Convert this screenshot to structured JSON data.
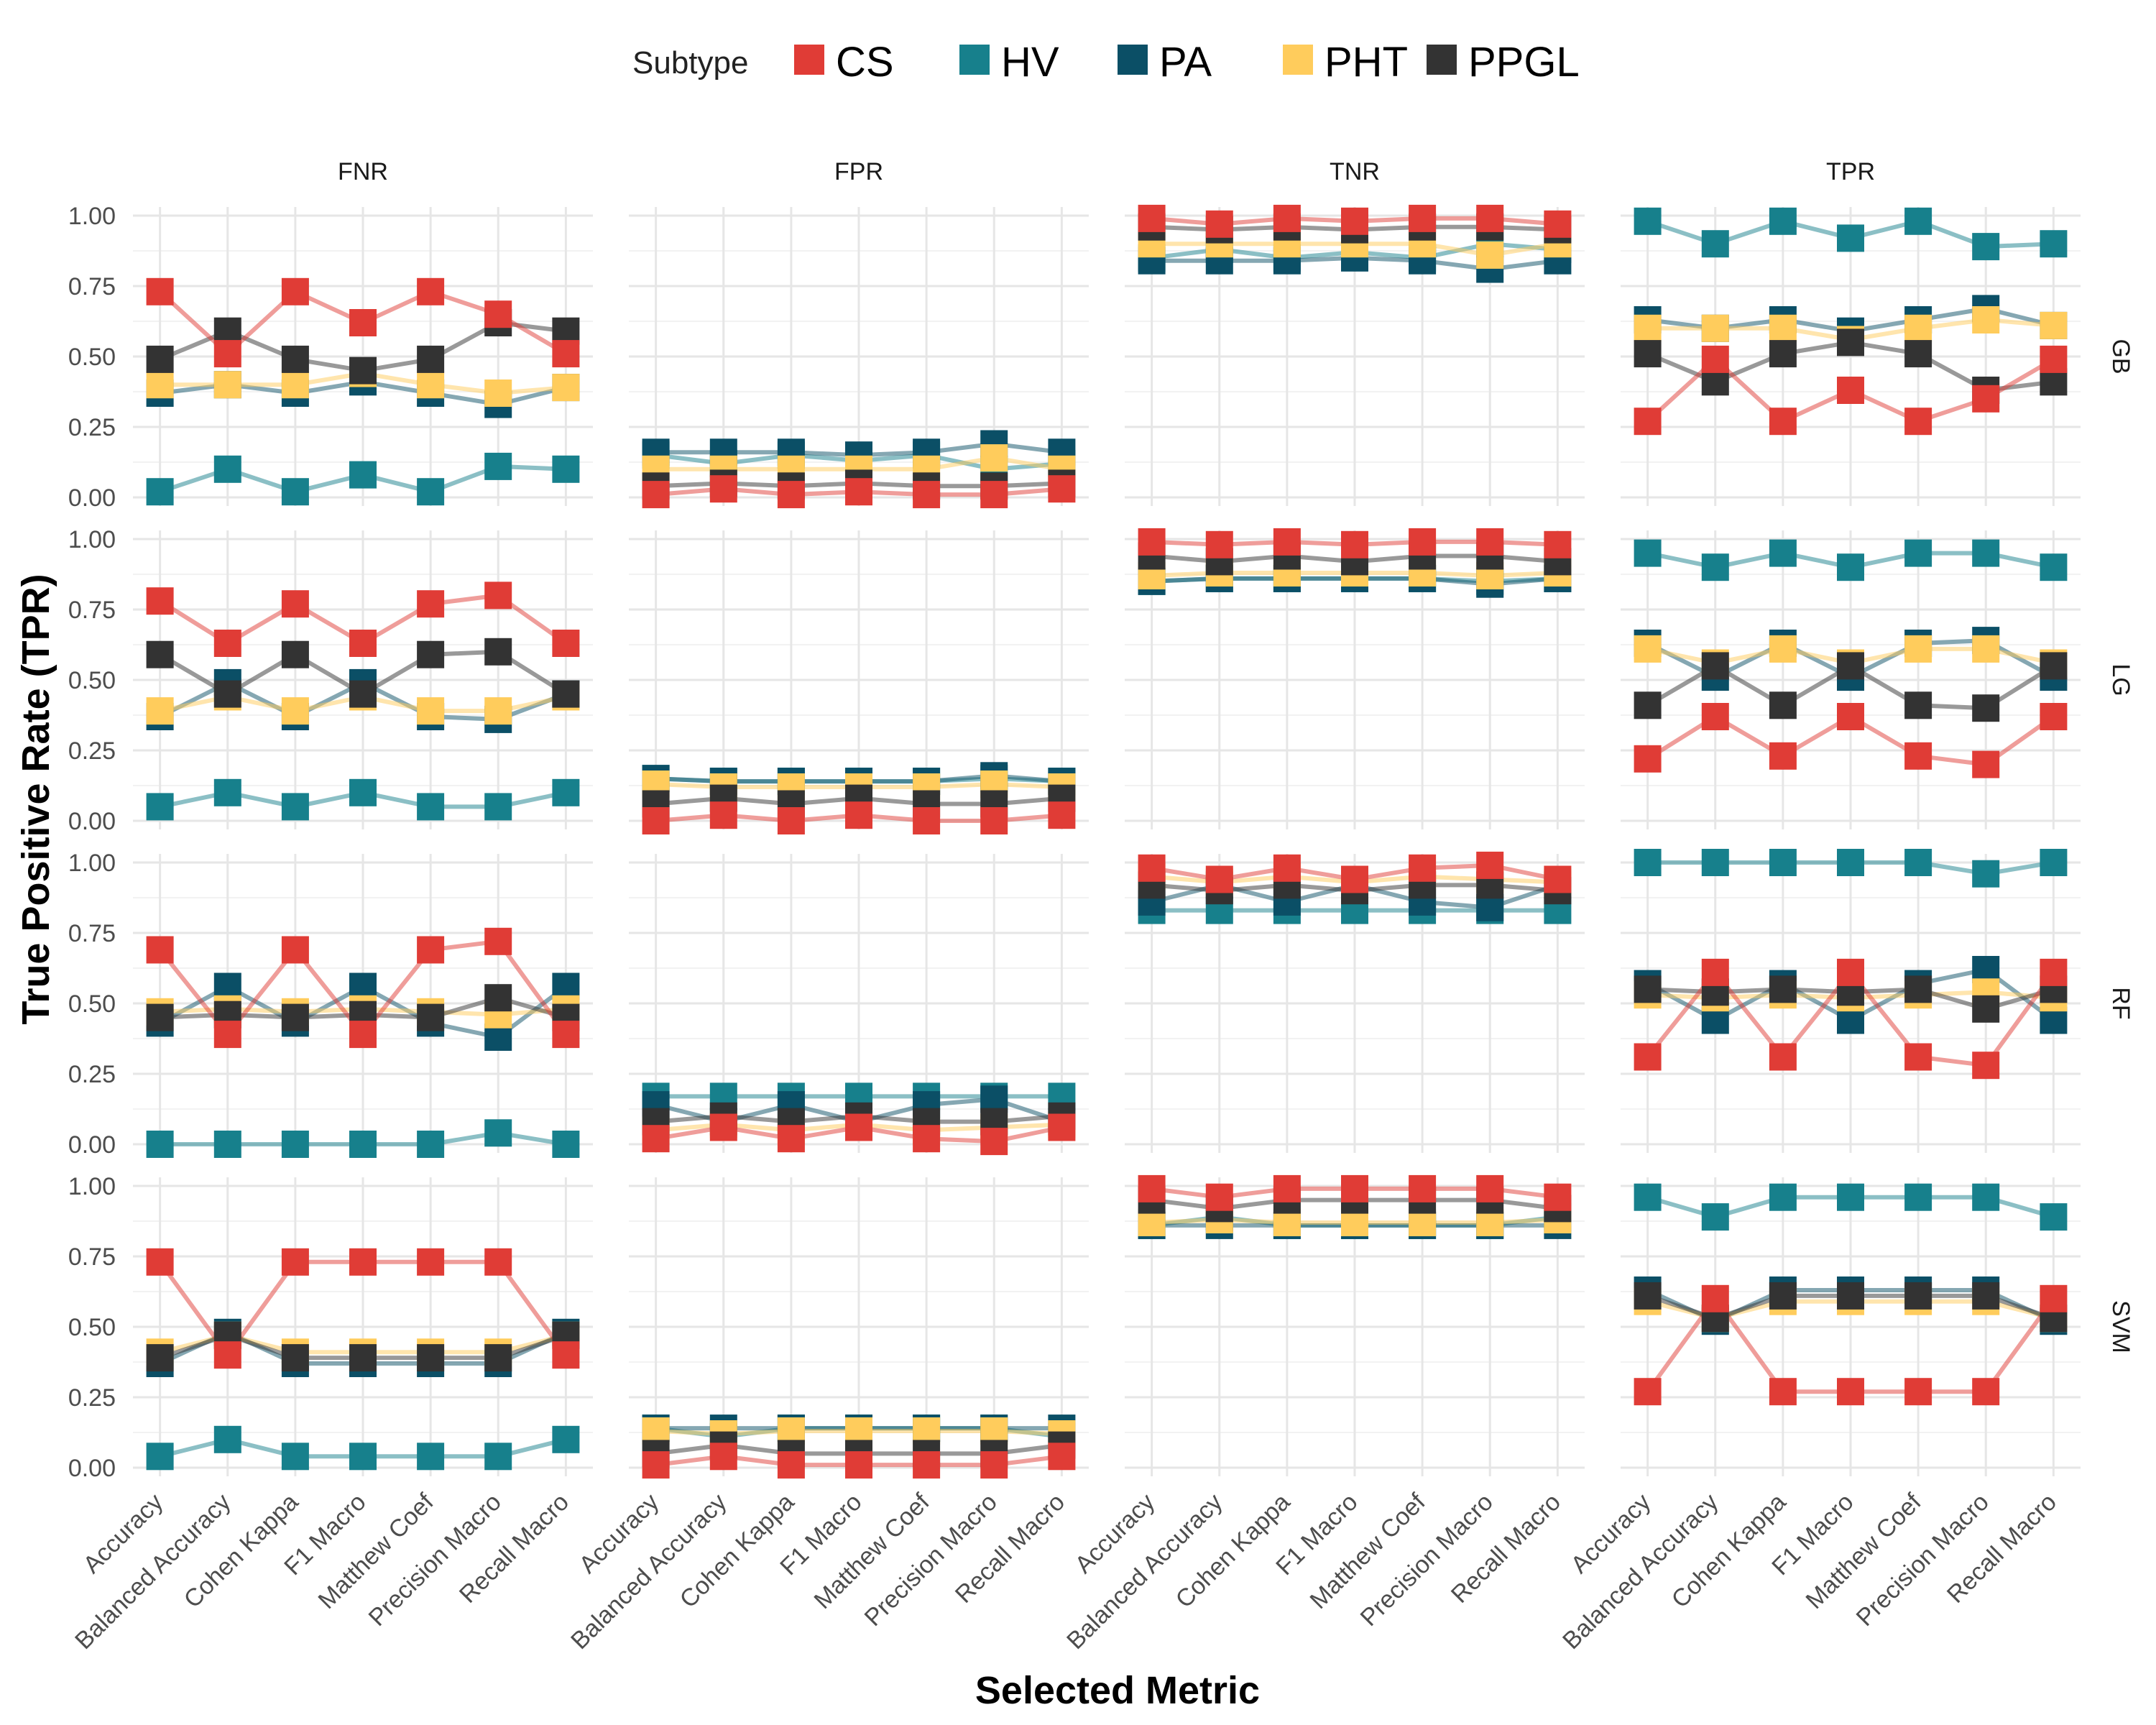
{
  "chart_data": {
    "type": "line",
    "xlabel": "Selected Metric",
    "ylabel": "True Positive Rate (TPR)",
    "ylim": [
      0,
      1
    ],
    "yticks": [
      "0.00",
      "0.25",
      "0.50",
      "0.75",
      "1.00"
    ],
    "grid": true,
    "legend": {
      "title": "Subtype",
      "position": "top",
      "entries": [
        {
          "name": "CS",
          "color": "#E03C36"
        },
        {
          "name": "HV",
          "color": "#17808C"
        },
        {
          "name": "PA",
          "color": "#0B4F66"
        },
        {
          "name": "PHT",
          "color": "#FFCC5C"
        },
        {
          "name": "PPGL",
          "color": "#333333"
        }
      ]
    },
    "categories": [
      "Accuracy",
      "Balanced Accuracy",
      "Cohen Kappa",
      "F1 Macro",
      "Matthew Coef",
      "Precision Macro",
      "Recall Macro"
    ],
    "columns": [
      "FNR",
      "FPR",
      "TNR",
      "TPR"
    ],
    "rows": [
      "GB",
      "LG",
      "RF",
      "SVM"
    ],
    "panels": {
      "GB": {
        "FNR": {
          "CS": [
            0.73,
            0.51,
            0.73,
            0.62,
            0.73,
            0.65,
            0.51
          ],
          "HV": [
            0.02,
            0.1,
            0.02,
            0.08,
            0.02,
            0.11,
            0.1
          ],
          "PA": [
            0.37,
            0.4,
            0.37,
            0.41,
            0.37,
            0.33,
            0.39
          ],
          "PHT": [
            0.4,
            0.4,
            0.4,
            0.44,
            0.4,
            0.37,
            0.39
          ],
          "PPGL": [
            0.49,
            0.59,
            0.49,
            0.45,
            0.49,
            0.62,
            0.59
          ]
        },
        "FPR": {
          "CS": [
            0.01,
            0.03,
            0.01,
            0.02,
            0.01,
            0.01,
            0.03
          ],
          "HV": [
            0.15,
            0.12,
            0.15,
            0.13,
            0.15,
            0.1,
            0.12
          ],
          "PA": [
            0.16,
            0.16,
            0.16,
            0.15,
            0.16,
            0.19,
            0.16
          ],
          "PHT": [
            0.1,
            0.1,
            0.1,
            0.1,
            0.1,
            0.14,
            0.1
          ],
          "PPGL": [
            0.04,
            0.05,
            0.04,
            0.05,
            0.04,
            0.04,
            0.05
          ]
        },
        "TNR": {
          "CS": [
            0.99,
            0.97,
            0.99,
            0.98,
            0.99,
            0.99,
            0.97
          ],
          "HV": [
            0.85,
            0.88,
            0.85,
            0.87,
            0.85,
            0.9,
            0.88
          ],
          "PA": [
            0.84,
            0.84,
            0.84,
            0.85,
            0.84,
            0.81,
            0.84
          ],
          "PHT": [
            0.9,
            0.9,
            0.9,
            0.9,
            0.9,
            0.86,
            0.9
          ],
          "PPGL": [
            0.96,
            0.95,
            0.96,
            0.95,
            0.96,
            0.96,
            0.95
          ]
        },
        "TPR": {
          "CS": [
            0.27,
            0.49,
            0.27,
            0.38,
            0.27,
            0.35,
            0.49
          ],
          "HV": [
            0.98,
            0.9,
            0.98,
            0.92,
            0.98,
            0.89,
            0.9
          ],
          "PA": [
            0.63,
            0.6,
            0.63,
            0.59,
            0.63,
            0.67,
            0.61
          ],
          "PHT": [
            0.6,
            0.6,
            0.6,
            0.56,
            0.6,
            0.63,
            0.61
          ],
          "PPGL": [
            0.51,
            0.41,
            0.51,
            0.55,
            0.51,
            0.38,
            0.41
          ]
        }
      },
      "LG": {
        "FNR": {
          "CS": [
            0.78,
            0.63,
            0.77,
            0.63,
            0.77,
            0.8,
            0.63
          ],
          "HV": [
            0.05,
            0.1,
            0.05,
            0.1,
            0.05,
            0.05,
            0.1
          ],
          "PA": [
            0.37,
            0.49,
            0.37,
            0.49,
            0.37,
            0.36,
            0.45
          ],
          "PHT": [
            0.39,
            0.44,
            0.39,
            0.44,
            0.39,
            0.39,
            0.44
          ],
          "PPGL": [
            0.59,
            0.45,
            0.59,
            0.45,
            0.59,
            0.6,
            0.45
          ]
        },
        "FPR": {
          "CS": [
            0.0,
            0.02,
            0.0,
            0.02,
            0.0,
            0.0,
            0.02
          ],
          "HV": [
            0.15,
            0.14,
            0.14,
            0.14,
            0.14,
            0.15,
            0.14
          ],
          "PA": [
            0.15,
            0.14,
            0.14,
            0.14,
            0.14,
            0.16,
            0.14
          ],
          "PHT": [
            0.13,
            0.12,
            0.12,
            0.12,
            0.12,
            0.13,
            0.12
          ],
          "PPGL": [
            0.06,
            0.08,
            0.06,
            0.08,
            0.06,
            0.06,
            0.08
          ]
        },
        "TNR": {
          "CS": [
            0.99,
            0.98,
            0.99,
            0.98,
            0.99,
            0.99,
            0.98
          ],
          "HV": [
            0.85,
            0.86,
            0.86,
            0.86,
            0.86,
            0.85,
            0.86
          ],
          "PA": [
            0.85,
            0.86,
            0.86,
            0.86,
            0.86,
            0.84,
            0.86
          ],
          "PHT": [
            0.87,
            0.88,
            0.88,
            0.88,
            0.88,
            0.87,
            0.88
          ],
          "PPGL": [
            0.94,
            0.92,
            0.94,
            0.92,
            0.94,
            0.94,
            0.92
          ]
        },
        "TPR": {
          "CS": [
            0.22,
            0.37,
            0.23,
            0.37,
            0.23,
            0.2,
            0.37
          ],
          "HV": [
            0.95,
            0.9,
            0.95,
            0.9,
            0.95,
            0.95,
            0.9
          ],
          "PA": [
            0.63,
            0.51,
            0.63,
            0.51,
            0.63,
            0.64,
            0.51
          ],
          "PHT": [
            0.61,
            0.56,
            0.61,
            0.56,
            0.61,
            0.61,
            0.56
          ],
          "PPGL": [
            0.41,
            0.55,
            0.41,
            0.55,
            0.41,
            0.4,
            0.55
          ]
        }
      },
      "RF": {
        "FNR": {
          "CS": [
            0.69,
            0.39,
            0.69,
            0.39,
            0.69,
            0.72,
            0.39
          ],
          "HV": [
            0.0,
            0.0,
            0.0,
            0.0,
            0.0,
            0.04,
            0.0
          ],
          "PA": [
            0.43,
            0.56,
            0.43,
            0.56,
            0.43,
            0.38,
            0.56
          ],
          "PHT": [
            0.47,
            0.48,
            0.47,
            0.48,
            0.47,
            0.46,
            0.48
          ],
          "PPGL": [
            0.45,
            0.46,
            0.45,
            0.46,
            0.45,
            0.52,
            0.45
          ]
        },
        "FPR": {
          "CS": [
            0.02,
            0.06,
            0.02,
            0.06,
            0.02,
            0.01,
            0.06
          ],
          "HV": [
            0.17,
            0.17,
            0.17,
            0.17,
            0.17,
            0.17,
            0.17
          ],
          "PA": [
            0.14,
            0.08,
            0.14,
            0.08,
            0.14,
            0.16,
            0.08
          ],
          "PHT": [
            0.05,
            0.07,
            0.05,
            0.07,
            0.05,
            0.06,
            0.07
          ],
          "PPGL": [
            0.08,
            0.1,
            0.08,
            0.1,
            0.08,
            0.08,
            0.1
          ]
        },
        "TNR": {
          "CS": [
            0.98,
            0.94,
            0.98,
            0.94,
            0.98,
            0.99,
            0.94
          ],
          "HV": [
            0.83,
            0.83,
            0.83,
            0.83,
            0.83,
            0.83,
            0.83
          ],
          "PA": [
            0.86,
            0.92,
            0.86,
            0.92,
            0.86,
            0.84,
            0.92
          ],
          "PHT": [
            0.95,
            0.93,
            0.95,
            0.93,
            0.95,
            0.94,
            0.93
          ],
          "PPGL": [
            0.92,
            0.9,
            0.92,
            0.9,
            0.92,
            0.92,
            0.9
          ]
        },
        "TPR": {
          "CS": [
            0.31,
            0.61,
            0.31,
            0.61,
            0.31,
            0.28,
            0.61
          ],
          "HV": [
            1.0,
            1.0,
            1.0,
            1.0,
            1.0,
            0.96,
            1.0
          ],
          "PA": [
            0.57,
            0.44,
            0.57,
            0.44,
            0.57,
            0.62,
            0.44
          ],
          "PHT": [
            0.53,
            0.52,
            0.53,
            0.52,
            0.53,
            0.54,
            0.52
          ],
          "PPGL": [
            0.55,
            0.54,
            0.55,
            0.54,
            0.55,
            0.48,
            0.55
          ]
        }
      },
      "SVM": {
        "FNR": {
          "CS": [
            0.73,
            0.4,
            0.73,
            0.73,
            0.73,
            0.73,
            0.4
          ],
          "HV": [
            0.04,
            0.1,
            0.04,
            0.04,
            0.04,
            0.04,
            0.1
          ],
          "PA": [
            0.37,
            0.48,
            0.37,
            0.37,
            0.37,
            0.37,
            0.48
          ],
          "PHT": [
            0.41,
            0.47,
            0.41,
            0.41,
            0.41,
            0.41,
            0.47
          ],
          "PPGL": [
            0.39,
            0.47,
            0.39,
            0.39,
            0.39,
            0.39,
            0.47
          ]
        },
        "FPR": {
          "CS": [
            0.01,
            0.04,
            0.01,
            0.01,
            0.01,
            0.01,
            0.04
          ],
          "HV": [
            0.14,
            0.11,
            0.14,
            0.14,
            0.14,
            0.14,
            0.11
          ],
          "PA": [
            0.14,
            0.14,
            0.14,
            0.14,
            0.14,
            0.14,
            0.14
          ],
          "PHT": [
            0.13,
            0.12,
            0.13,
            0.13,
            0.13,
            0.13,
            0.12
          ],
          "PPGL": [
            0.05,
            0.08,
            0.05,
            0.05,
            0.05,
            0.05,
            0.08
          ]
        },
        "TNR": {
          "CS": [
            0.99,
            0.96,
            0.99,
            0.99,
            0.99,
            0.99,
            0.96
          ],
          "HV": [
            0.86,
            0.89,
            0.86,
            0.86,
            0.86,
            0.86,
            0.89
          ],
          "PA": [
            0.86,
            0.86,
            0.86,
            0.86,
            0.86,
            0.86,
            0.86
          ],
          "PHT": [
            0.87,
            0.88,
            0.87,
            0.87,
            0.87,
            0.87,
            0.88
          ],
          "PPGL": [
            0.95,
            0.92,
            0.95,
            0.95,
            0.95,
            0.95,
            0.92
          ]
        },
        "TPR": {
          "CS": [
            0.27,
            0.6,
            0.27,
            0.27,
            0.27,
            0.27,
            0.6
          ],
          "HV": [
            0.96,
            0.89,
            0.96,
            0.96,
            0.96,
            0.96,
            0.89
          ],
          "PA": [
            0.63,
            0.52,
            0.63,
            0.63,
            0.63,
            0.63,
            0.52
          ],
          "PHT": [
            0.59,
            0.53,
            0.59,
            0.59,
            0.59,
            0.59,
            0.53
          ],
          "PPGL": [
            0.61,
            0.53,
            0.61,
            0.61,
            0.61,
            0.61,
            0.53
          ]
        }
      }
    }
  }
}
